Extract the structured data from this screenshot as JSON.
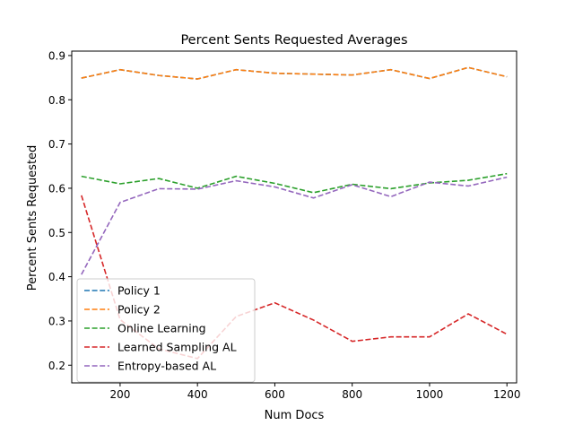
{
  "chart_data": {
    "type": "line",
    "title": "Percent Sents Requested Averages",
    "xlabel": "Num Docs",
    "ylabel": "Percent Sents Requested",
    "xlim": [
      75,
      1225
    ],
    "ylim": [
      0.16,
      0.91
    ],
    "xticks": [
      200,
      400,
      600,
      800,
      1000,
      1200
    ],
    "yticks": [
      0.2,
      0.3,
      0.4,
      0.5,
      0.6,
      0.7,
      0.8,
      0.9
    ],
    "xtick_labels": [
      "200",
      "400",
      "600",
      "800",
      "1000",
      "1200"
    ],
    "ytick_labels": [
      "0.2",
      "0.3",
      "0.4",
      "0.5",
      "0.6",
      "0.7",
      "0.8",
      "0.9"
    ],
    "grid": false,
    "legend_position": "lower-left",
    "line_style": "dashed",
    "x": [
      100,
      200,
      300,
      400,
      500,
      600,
      700,
      800,
      900,
      1000,
      1100,
      1200
    ],
    "series": [
      {
        "name": "Policy 1",
        "color": "#1f77b4",
        "values": [
          0.849,
          0.868,
          0.855,
          0.847,
          0.868,
          0.86,
          0.858,
          0.856,
          0.868,
          0.848,
          0.873,
          0.852
        ]
      },
      {
        "name": "Policy 2",
        "color": "#ff7f0e",
        "values": [
          0.849,
          0.868,
          0.855,
          0.847,
          0.868,
          0.86,
          0.858,
          0.856,
          0.868,
          0.848,
          0.873,
          0.852
        ]
      },
      {
        "name": "Online Learning",
        "color": "#2ca02c",
        "values": [
          0.627,
          0.61,
          0.622,
          0.6,
          0.627,
          0.611,
          0.59,
          0.609,
          0.599,
          0.612,
          0.618,
          0.633
        ]
      },
      {
        "name": "Learned Sampling AL",
        "color": "#d62728",
        "values": [
          0.584,
          0.303,
          0.237,
          0.215,
          0.31,
          0.341,
          0.302,
          0.254,
          0.264,
          0.264,
          0.316,
          0.27
        ]
      },
      {
        "name": "Entropy-based AL",
        "color": "#9467bd",
        "values": [
          0.405,
          0.568,
          0.599,
          0.598,
          0.617,
          0.603,
          0.578,
          0.608,
          0.581,
          0.614,
          0.605,
          0.625
        ]
      }
    ]
  }
}
